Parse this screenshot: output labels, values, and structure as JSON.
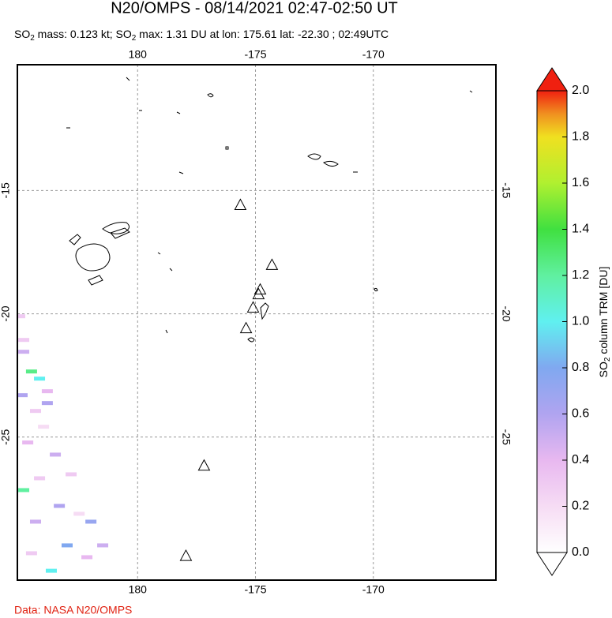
{
  "chart_data": {
    "type": "map",
    "title": "N20/OMPS - 08/14/2021 02:47-02:50 UT",
    "subtitle_parts": [
      "SO",
      "2",
      " mass: 0.123 kt; SO",
      "2",
      " max: 1.31 DU at lon: 175.61 lat: -22.30 ; 02:49UTC"
    ],
    "xlim": [
      174.9,
      -164.8
    ],
    "ylim": [
      -30.8,
      -9.9
    ],
    "xticks": [
      180,
      -175,
      -170
    ],
    "yticks": [
      -15,
      -20,
      -25
    ],
    "grid": true,
    "volcanoes": [
      [
        -175.64,
        -15.58
      ],
      [
        -174.3,
        -18.01
      ],
      [
        -174.8,
        -19.01
      ],
      [
        -174.87,
        -19.2
      ],
      [
        -175.1,
        -19.74
      ],
      [
        -175.4,
        -20.58
      ],
      [
        -177.18,
        -26.15
      ],
      [
        -177.95,
        -29.81
      ]
    ],
    "so2_pixels": {
      "lon": [
        175.0,
        175.17,
        175.17,
        175.5,
        175.84,
        176.17,
        175.67,
        176.17,
        175.34,
        176.51,
        175.17,
        175.84,
        176.68,
        177.18,
        175.67,
        178.02,
        177.01,
        175.5,
        176.34,
        177.85,
        178.52,
        177.52,
        176.01,
        175.1
      ],
      "lat": [
        -20.1,
        -21.06,
        -21.54,
        -22.34,
        -22.63,
        -23.14,
        -23.94,
        -23.62,
        -25.22,
        -25.71,
        -27.15,
        -26.67,
        -27.79,
        -26.51,
        -28.43,
        -28.43,
        -29.39,
        -29.71,
        -30.42,
        -29.87,
        -29.39,
        -28.11,
        -24.58,
        -23.3
      ],
      "values": [
        0.3,
        0.3,
        0.5,
        1.25,
        1.0,
        0.4,
        0.3,
        0.6,
        0.4,
        0.5,
        1.2,
        0.3,
        0.6,
        0.3,
        0.5,
        0.7,
        0.8,
        0.3,
        1.0,
        0.4,
        0.5,
        0.2,
        0.2,
        0.6
      ]
    },
    "colorbar": {
      "label_parts": [
        "SO",
        "2",
        " column TRM [DU]"
      ],
      "lim": [
        0,
        2
      ],
      "ticks": [
        {
          "value": 0,
          "label": "0.0"
        },
        {
          "value": 0.2,
          "label": "0.2"
        },
        {
          "value": 0.4,
          "label": "0.4"
        },
        {
          "value": 0.6,
          "label": "0.6"
        },
        {
          "value": 0.8,
          "label": "0.8"
        },
        {
          "value": 1,
          "label": "1.0"
        },
        {
          "value": 1.2,
          "label": "1.2"
        },
        {
          "value": 1.4,
          "label": "1.4"
        },
        {
          "value": 1.6,
          "label": "1.6"
        },
        {
          "value": 1.8,
          "label": "1.8"
        },
        {
          "value": 2,
          "label": "2.0"
        }
      ]
    },
    "footer": "Data: NASA N20/OMPS"
  }
}
